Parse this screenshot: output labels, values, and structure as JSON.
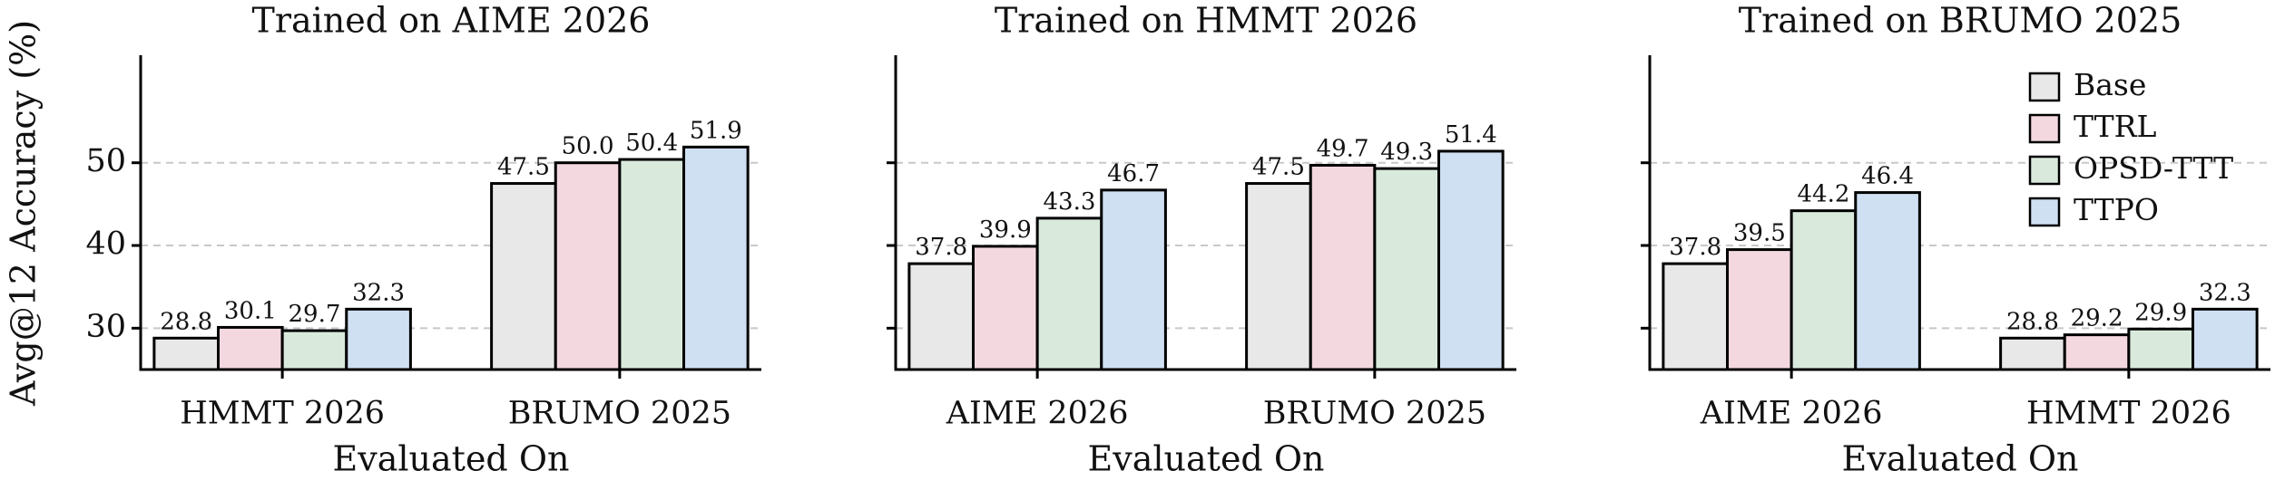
{
  "chart_data": [
    {
      "type": "bar",
      "title": "Trained on AIME 2026",
      "x_label": "Evaluated On",
      "y_label": "Avg@12 Accuracy (%)",
      "categories": [
        "HMMT 2026",
        "BRUMO 2025"
      ],
      "series": [
        {
          "name": "Base",
          "color": "#e8e8e8",
          "values": [
            28.8,
            47.5
          ]
        },
        {
          "name": "TTRL",
          "color": "#f3d8df",
          "values": [
            30.1,
            50.0
          ],
          "value_labels": [
            "30.1",
            "50.0"
          ]
        },
        {
          "name": "OPSD-TTT",
          "color": "#d9eadd",
          "values": [
            29.7,
            50.4
          ]
        },
        {
          "name": "TTPO",
          "color": "#cfe0f2",
          "values": [
            32.3,
            51.9
          ]
        }
      ],
      "ylim": [
        25,
        63
      ],
      "yticks": [
        30,
        40,
        50
      ],
      "grid": true,
      "show_ytick_labels": true
    },
    {
      "type": "bar",
      "title": "Trained on HMMT 2026",
      "x_label": "Evaluated On",
      "categories": [
        "AIME 2026",
        "BRUMO 2025"
      ],
      "series": [
        {
          "name": "Base",
          "color": "#e8e8e8",
          "values": [
            37.8,
            47.5
          ]
        },
        {
          "name": "TTRL",
          "color": "#f3d8df",
          "values": [
            39.9,
            49.7
          ]
        },
        {
          "name": "OPSD-TTT",
          "color": "#d9eadd",
          "values": [
            43.3,
            49.3
          ]
        },
        {
          "name": "TTPO",
          "color": "#cfe0f2",
          "values": [
            46.7,
            51.4
          ]
        }
      ],
      "ylim": [
        25,
        63
      ],
      "yticks": [
        30,
        40,
        50
      ],
      "grid": true,
      "show_ytick_labels": false
    },
    {
      "type": "bar",
      "title": "Trained on BRUMO 2025",
      "x_label": "Evaluated On",
      "categories": [
        "AIME 2026",
        "HMMT 2026"
      ],
      "series": [
        {
          "name": "Base",
          "color": "#e8e8e8",
          "values": [
            37.8,
            28.8
          ]
        },
        {
          "name": "TTRL",
          "color": "#f3d8df",
          "values": [
            39.5,
            29.2
          ]
        },
        {
          "name": "OPSD-TTT",
          "color": "#d9eadd",
          "values": [
            44.2,
            29.9
          ]
        },
        {
          "name": "TTPO",
          "color": "#cfe0f2",
          "values": [
            46.4,
            32.3
          ]
        }
      ],
      "ylim": [
        25,
        63
      ],
      "yticks": [
        30,
        40,
        50
      ],
      "grid": true,
      "show_ytick_labels": false,
      "legend": "upper right"
    }
  ]
}
